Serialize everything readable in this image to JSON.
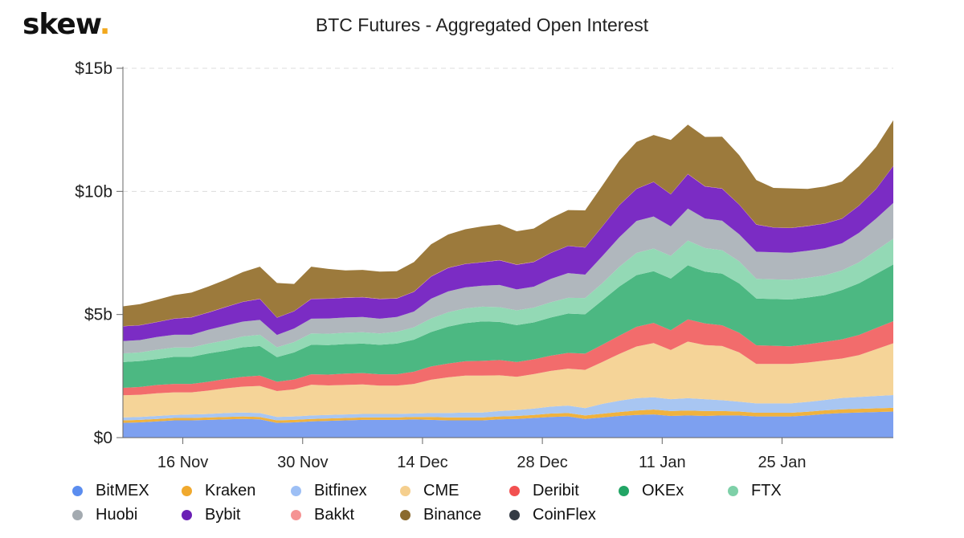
{
  "brand": {
    "name": "skew",
    "suffix": "."
  },
  "chart_data": {
    "type": "area",
    "title": "BTC Futures - Aggregated Open Interest",
    "stacked": true,
    "ylim": [
      0,
      15
    ],
    "yticks": [
      0,
      5,
      10,
      15
    ],
    "ytick_labels": [
      "$0",
      "$5b",
      "$10b",
      "$15b"
    ],
    "xtick_labels": [
      "16 Nov",
      "30 Nov",
      "14 Dec",
      "28 Dec",
      "11 Jan",
      "25 Jan"
    ],
    "xticks": [
      "2020-11-16",
      "2020-11-30",
      "2020-12-14",
      "2020-12-28",
      "2021-01-11",
      "2021-01-25"
    ],
    "grid": true,
    "legend_position": "bottom",
    "x": [
      "2020-11-09",
      "2020-11-11",
      "2020-11-13",
      "2020-11-15",
      "2020-11-17",
      "2020-11-19",
      "2020-11-21",
      "2020-11-23",
      "2020-11-25",
      "2020-11-27",
      "2020-11-29",
      "2020-12-01",
      "2020-12-03",
      "2020-12-05",
      "2020-12-07",
      "2020-12-09",
      "2020-12-11",
      "2020-12-13",
      "2020-12-15",
      "2020-12-17",
      "2020-12-19",
      "2020-12-21",
      "2020-12-23",
      "2020-12-25",
      "2020-12-27",
      "2020-12-29",
      "2020-12-31",
      "2021-01-02",
      "2021-01-04",
      "2021-01-06",
      "2021-01-08",
      "2021-01-10",
      "2021-01-12",
      "2021-01-14",
      "2021-01-16",
      "2021-01-18",
      "2021-01-20",
      "2021-01-22",
      "2021-01-24",
      "2021-01-26",
      "2021-01-28",
      "2021-01-30",
      "2021-02-01",
      "2021-02-03",
      "2021-02-05",
      "2021-02-07"
    ],
    "series": [
      {
        "name": "BitMEX",
        "color": "#7da0f0",
        "values": [
          0.6,
          0.62,
          0.66,
          0.7,
          0.7,
          0.72,
          0.74,
          0.76,
          0.74,
          0.6,
          0.62,
          0.66,
          0.68,
          0.7,
          0.72,
          0.72,
          0.72,
          0.74,
          0.72,
          0.7,
          0.7,
          0.7,
          0.74,
          0.76,
          0.8,
          0.84,
          0.86,
          0.76,
          0.82,
          0.88,
          0.92,
          0.94,
          0.88,
          0.9,
          0.88,
          0.9,
          0.9,
          0.86,
          0.86,
          0.86,
          0.9,
          0.96,
          1.0,
          1.02,
          1.04,
          1.06
        ]
      },
      {
        "name": "Kraken",
        "color": "#f0b23e",
        "values": [
          0.1,
          0.1,
          0.1,
          0.1,
          0.1,
          0.1,
          0.1,
          0.1,
          0.1,
          0.1,
          0.1,
          0.1,
          0.1,
          0.1,
          0.1,
          0.1,
          0.1,
          0.1,
          0.12,
          0.12,
          0.12,
          0.12,
          0.12,
          0.12,
          0.12,
          0.14,
          0.14,
          0.14,
          0.15,
          0.16,
          0.18,
          0.2,
          0.2,
          0.2,
          0.2,
          0.18,
          0.16,
          0.15,
          0.15,
          0.15,
          0.15,
          0.15,
          0.15,
          0.15,
          0.15,
          0.15
        ]
      },
      {
        "name": "Bitfinex",
        "color": "#a8c6f2",
        "values": [
          0.12,
          0.12,
          0.12,
          0.12,
          0.14,
          0.14,
          0.16,
          0.16,
          0.16,
          0.14,
          0.14,
          0.14,
          0.14,
          0.14,
          0.14,
          0.14,
          0.14,
          0.14,
          0.16,
          0.18,
          0.2,
          0.2,
          0.22,
          0.24,
          0.26,
          0.28,
          0.3,
          0.3,
          0.4,
          0.46,
          0.5,
          0.5,
          0.48,
          0.5,
          0.48,
          0.44,
          0.4,
          0.38,
          0.38,
          0.38,
          0.4,
          0.42,
          0.46,
          0.48,
          0.5,
          0.52
        ]
      },
      {
        "name": "CME",
        "color": "#f5d498",
        "values": [
          0.9,
          0.9,
          0.92,
          0.92,
          0.9,
          0.95,
          1.0,
          1.05,
          1.1,
          1.05,
          1.1,
          1.25,
          1.2,
          1.2,
          1.2,
          1.15,
          1.15,
          1.2,
          1.35,
          1.45,
          1.5,
          1.5,
          1.45,
          1.35,
          1.4,
          1.45,
          1.5,
          1.55,
          1.7,
          1.9,
          2.1,
          2.2,
          2.0,
          2.3,
          2.2,
          2.2,
          2.0,
          1.6,
          1.6,
          1.6,
          1.6,
          1.6,
          1.6,
          1.7,
          1.9,
          2.1
        ]
      },
      {
        "name": "Deribit",
        "color": "#f26c6c",
        "values": [
          0.3,
          0.32,
          0.34,
          0.34,
          0.34,
          0.36,
          0.38,
          0.4,
          0.42,
          0.38,
          0.4,
          0.42,
          0.44,
          0.46,
          0.46,
          0.46,
          0.46,
          0.5,
          0.54,
          0.56,
          0.58,
          0.6,
          0.62,
          0.6,
          0.6,
          0.62,
          0.64,
          0.66,
          0.7,
          0.74,
          0.8,
          0.82,
          0.8,
          0.9,
          0.88,
          0.84,
          0.8,
          0.76,
          0.74,
          0.72,
          0.74,
          0.76,
          0.78,
          0.82,
          0.86,
          0.9
        ]
      },
      {
        "name": "OKEx",
        "color": "#4cb882",
        "values": [
          1.05,
          1.05,
          1.05,
          1.1,
          1.1,
          1.15,
          1.15,
          1.2,
          1.2,
          1.0,
          1.1,
          1.2,
          1.2,
          1.2,
          1.2,
          1.2,
          1.25,
          1.3,
          1.4,
          1.5,
          1.55,
          1.6,
          1.55,
          1.5,
          1.5,
          1.55,
          1.6,
          1.6,
          1.8,
          2.0,
          2.1,
          2.1,
          2.1,
          2.2,
          2.1,
          2.1,
          2.0,
          1.9,
          1.9,
          1.9,
          1.9,
          1.9,
          2.0,
          2.1,
          2.2,
          2.3
        ]
      },
      {
        "name": "FTX",
        "color": "#93d9b5",
        "values": [
          0.35,
          0.35,
          0.38,
          0.38,
          0.38,
          0.4,
          0.42,
          0.44,
          0.46,
          0.4,
          0.42,
          0.46,
          0.46,
          0.46,
          0.46,
          0.46,
          0.48,
          0.5,
          0.55,
          0.58,
          0.6,
          0.6,
          0.6,
          0.6,
          0.6,
          0.62,
          0.64,
          0.66,
          0.7,
          0.8,
          0.9,
          0.92,
          0.92,
          1.0,
          0.96,
          0.95,
          0.9,
          0.8,
          0.8,
          0.8,
          0.8,
          0.8,
          0.8,
          0.85,
          0.95,
          1.05
        ]
      },
      {
        "name": "Huobi",
        "color": "#b0b7bd",
        "values": [
          0.5,
          0.5,
          0.52,
          0.52,
          0.52,
          0.56,
          0.6,
          0.6,
          0.6,
          0.5,
          0.55,
          0.6,
          0.62,
          0.62,
          0.62,
          0.6,
          0.6,
          0.64,
          0.8,
          0.85,
          0.85,
          0.85,
          0.9,
          0.85,
          0.85,
          0.95,
          1.0,
          0.95,
          1.1,
          1.2,
          1.3,
          1.3,
          1.2,
          1.3,
          1.2,
          1.2,
          1.1,
          1.1,
          1.1,
          1.1,
          1.1,
          1.1,
          1.1,
          1.2,
          1.3,
          1.45
        ]
      },
      {
        "name": "Bybit",
        "color": "#7b2cc4",
        "values": [
          0.6,
          0.6,
          0.6,
          0.65,
          0.7,
          0.7,
          0.75,
          0.8,
          0.85,
          0.7,
          0.7,
          0.8,
          0.8,
          0.8,
          0.8,
          0.8,
          0.75,
          0.8,
          0.9,
          0.95,
          0.95,
          0.95,
          1.0,
          1.0,
          1.0,
          1.05,
          1.1,
          1.1,
          1.2,
          1.3,
          1.3,
          1.4,
          1.3,
          1.4,
          1.3,
          1.3,
          1.2,
          1.1,
          1.0,
          1.0,
          1.0,
          1.0,
          1.0,
          1.1,
          1.2,
          1.5
        ]
      },
      {
        "name": "Bakkt",
        "color": "#f59b9b",
        "values": [
          0.01,
          0.01,
          0.01,
          0.01,
          0.01,
          0.01,
          0.01,
          0.01,
          0.01,
          0.01,
          0.01,
          0.01,
          0.01,
          0.01,
          0.01,
          0.01,
          0.01,
          0.01,
          0.01,
          0.01,
          0.01,
          0.01,
          0.01,
          0.01,
          0.01,
          0.01,
          0.01,
          0.01,
          0.01,
          0.01,
          0.01,
          0.01,
          0.01,
          0.01,
          0.01,
          0.01,
          0.01,
          0.01,
          0.01,
          0.01,
          0.01,
          0.01,
          0.01,
          0.01,
          0.01,
          0.01
        ]
      },
      {
        "name": "Binance",
        "color": "#9c7a3c",
        "values": [
          0.8,
          0.85,
          0.9,
          0.95,
          1.0,
          1.05,
          1.1,
          1.2,
          1.3,
          1.4,
          1.1,
          1.3,
          1.2,
          1.1,
          1.1,
          1.1,
          1.1,
          1.2,
          1.3,
          1.35,
          1.4,
          1.45,
          1.45,
          1.35,
          1.35,
          1.4,
          1.45,
          1.5,
          1.65,
          1.8,
          1.9,
          1.9,
          2.2,
          2.0,
          2.0,
          2.1,
          2.0,
          1.8,
          1.6,
          1.6,
          1.5,
          1.5,
          1.5,
          1.6,
          1.7,
          1.85
        ]
      },
      {
        "name": "CoinFlex",
        "color": "#333a44",
        "values": [
          0,
          0,
          0,
          0,
          0,
          0,
          0,
          0,
          0,
          0,
          0,
          0,
          0,
          0,
          0,
          0,
          0,
          0,
          0,
          0,
          0,
          0,
          0,
          0,
          0,
          0,
          0,
          0,
          0,
          0,
          0,
          0,
          0,
          0,
          0,
          0,
          0,
          0,
          0,
          0,
          0,
          0,
          0,
          0,
          0,
          0
        ]
      }
    ]
  },
  "legend": [
    {
      "label": "BitMEX",
      "color": "#5b8def"
    },
    {
      "label": "Kraken",
      "color": "#f0a92e"
    },
    {
      "label": "Bitfinex",
      "color": "#9dbff5"
    },
    {
      "label": "CME",
      "color": "#f5cf8e"
    },
    {
      "label": "Deribit",
      "color": "#f25050"
    },
    {
      "label": "OKEx",
      "color": "#22a565"
    },
    {
      "label": "FTX",
      "color": "#7ed0a8"
    },
    {
      "label": "Huobi",
      "color": "#a3aab0"
    },
    {
      "label": "Bybit",
      "color": "#6a1fb5"
    },
    {
      "label": "Bakkt",
      "color": "#f59393"
    },
    {
      "label": "Binance",
      "color": "#8a6a2e"
    },
    {
      "label": "CoinFlex",
      "color": "#333a44"
    }
  ]
}
